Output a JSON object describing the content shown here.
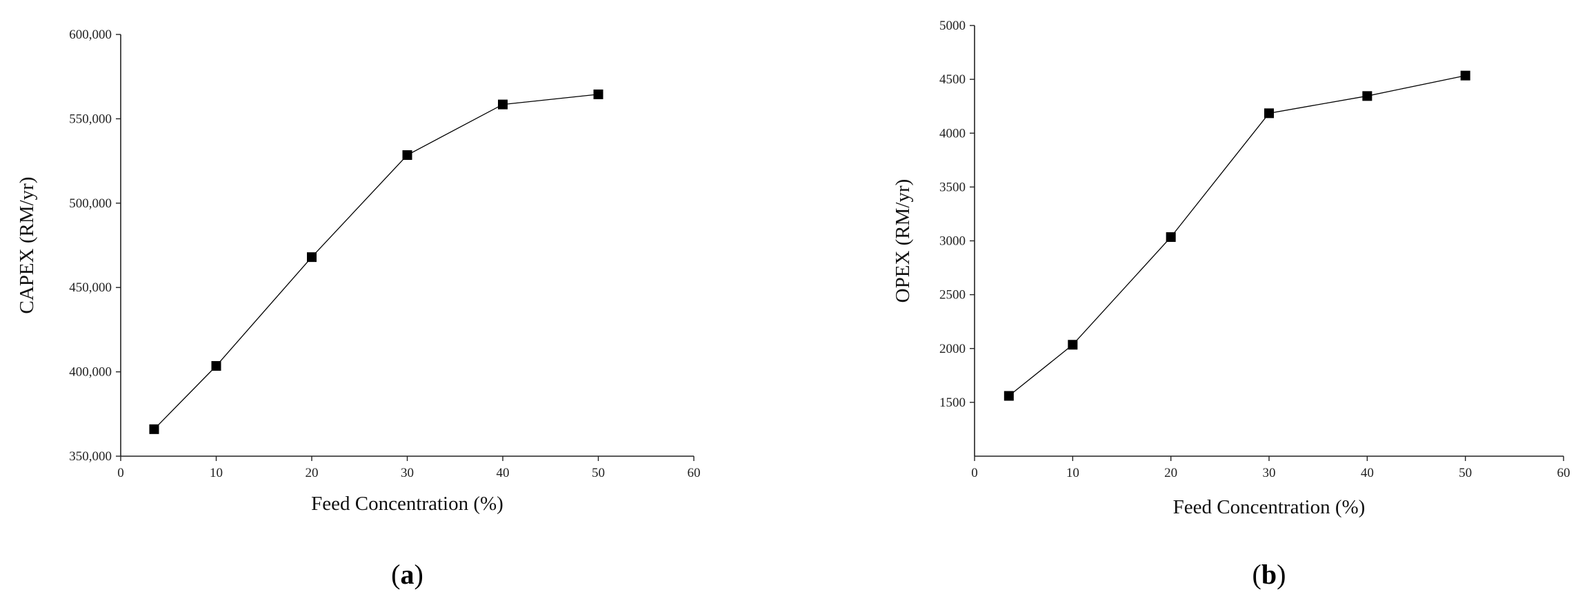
{
  "chart_data": [
    {
      "type": "line",
      "panel_label": "a",
      "title": "",
      "xlabel": "Feed Concentration (%)",
      "ylabel": "CAPEX (RM/yr)",
      "xlim": [
        0,
        60
      ],
      "ylim": [
        350000,
        600000
      ],
      "xticks": [
        0,
        10,
        20,
        30,
        40,
        50,
        60
      ],
      "xtick_labels": [
        "0",
        "10",
        "20",
        "30",
        "40",
        "50",
        "60"
      ],
      "yticks": [
        350000,
        400000,
        450000,
        500000,
        550000,
        600000
      ],
      "ytick_labels": [
        "350,000",
        "400,000",
        "450,000",
        "500,000",
        "550,000",
        "600,000"
      ],
      "grid": false,
      "marker": "square",
      "line_color": "#000000",
      "series": [
        {
          "x": [
            3.5,
            10,
            20,
            30,
            40,
            50
          ],
          "y": [
            366000,
            403500,
            468000,
            528500,
            558500,
            564500
          ]
        }
      ]
    },
    {
      "type": "line",
      "panel_label": "b",
      "title": "",
      "xlabel": "Feed Concentration (%)",
      "ylabel": "OPEX (RM/yr)",
      "xlim": [
        0,
        60
      ],
      "ylim": [
        1000,
        5000
      ],
      "xticks": [
        0,
        10,
        20,
        30,
        40,
        50,
        60
      ],
      "xtick_labels": [
        "0",
        "10",
        "20",
        "30",
        "40",
        "50",
        "60"
      ],
      "yticks": [
        1500,
        2000,
        2500,
        3000,
        3500,
        4000,
        4500,
        5000
      ],
      "ytick_labels": [
        "1500",
        "2000",
        "2500",
        "3000",
        "3500",
        "4000",
        "4500",
        "5000"
      ],
      "grid": false,
      "marker": "square",
      "line_color": "#000000",
      "series": [
        {
          "x": [
            3.5,
            10,
            20,
            30,
            40,
            50
          ],
          "y": [
            1560,
            2035,
            3035,
            4185,
            4345,
            4535
          ]
        }
      ]
    }
  ]
}
